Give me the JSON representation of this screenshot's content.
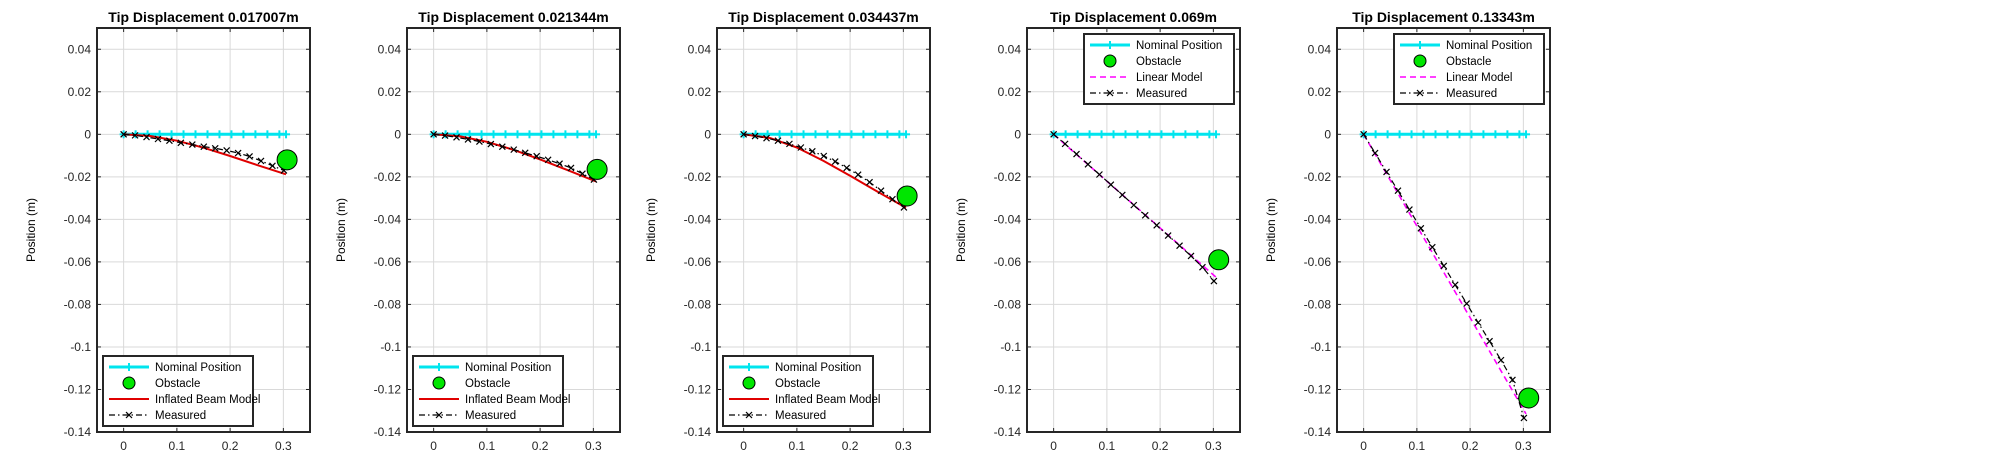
{
  "figure": {
    "x_ticks": [
      "0",
      "0.1",
      "0.2",
      "0.3"
    ],
    "y_ticks": [
      "0.04",
      "0.02",
      "0",
      "-0.02",
      "-0.04",
      "-0.06",
      "-0.08",
      "-0.1",
      "-0.12",
      "-0.14"
    ]
  },
  "colors": {
    "nominal": "#00e5ee",
    "obstacle": "#00e600",
    "beam_model": "#e00000",
    "linear_model": "#ff00ff",
    "measured": "#000000",
    "grid": "#d9d9d9"
  },
  "chart_data": [
    {
      "type": "line",
      "title": "Tip Displacement 0.017007m",
      "xlabel": "",
      "ylabel": "Position (m)",
      "xlim": [
        -0.05,
        0.35
      ],
      "ylim": [
        -0.14,
        0.05
      ],
      "grid": true,
      "legend_position": "bottom-left",
      "legend": [
        "Nominal Position",
        "Obstacle",
        "Inflated Beam Model",
        "Measured"
      ],
      "obstacle": {
        "x": 0.307,
        "y": -0.012
      },
      "series": [
        {
          "name": "Nominal Position",
          "style": "solid-plus",
          "x": [
            0,
            0.0225,
            0.045,
            0.0675,
            0.09,
            0.1125,
            0.135,
            0.1575,
            0.18,
            0.2025,
            0.225,
            0.2475,
            0.27,
            0.2925,
            0.305
          ],
          "y": [
            0,
            0,
            0,
            0,
            0,
            0,
            0,
            0,
            0,
            0,
            0,
            0,
            0,
            0,
            0
          ]
        },
        {
          "name": "Inflated Beam Model",
          "style": "solid",
          "x": [
            0,
            0.05,
            0.1,
            0.15,
            0.2,
            0.25,
            0.305
          ],
          "y": [
            0,
            -0.0008,
            -0.003,
            -0.0063,
            -0.0102,
            -0.0144,
            -0.0188
          ]
        },
        {
          "name": "Measured",
          "style": "dashdot-x",
          "x": [
            0,
            0.0215,
            0.043,
            0.0645,
            0.086,
            0.1075,
            0.129,
            0.1505,
            0.172,
            0.1935,
            0.215,
            0.2365,
            0.258,
            0.2795,
            0.301
          ],
          "y": [
            0,
            -0.0005,
            -0.0013,
            -0.0022,
            -0.003,
            -0.004,
            -0.0048,
            -0.0058,
            -0.0066,
            -0.0076,
            -0.0088,
            -0.0104,
            -0.0125,
            -0.0148,
            -0.017
          ]
        }
      ]
    },
    {
      "type": "line",
      "title": "Tip Displacement 0.021344m",
      "xlabel": "",
      "ylabel": "Position (m)",
      "xlim": [
        -0.05,
        0.35
      ],
      "ylim": [
        -0.14,
        0.05
      ],
      "grid": true,
      "legend_position": "bottom-left",
      "legend": [
        "Nominal Position",
        "Obstacle",
        "Inflated Beam Model",
        "Measured"
      ],
      "obstacle": {
        "x": 0.307,
        "y": -0.0165
      },
      "series": [
        {
          "name": "Nominal Position",
          "style": "solid-plus",
          "x": [
            0,
            0.0225,
            0.045,
            0.0675,
            0.09,
            0.1125,
            0.135,
            0.1575,
            0.18,
            0.2025,
            0.225,
            0.2475,
            0.27,
            0.2925,
            0.305
          ],
          "y": [
            0,
            0,
            0,
            0,
            0,
            0,
            0,
            0,
            0,
            0,
            0,
            0,
            0,
            0,
            0
          ]
        },
        {
          "name": "Inflated Beam Model",
          "style": "solid",
          "x": [
            0,
            0.05,
            0.1,
            0.15,
            0.2,
            0.25,
            0.305
          ],
          "y": [
            0,
            -0.001,
            -0.0035,
            -0.0073,
            -0.0118,
            -0.0167,
            -0.0222
          ]
        },
        {
          "name": "Measured",
          "style": "dashdot-x",
          "x": [
            0,
            0.0215,
            0.043,
            0.0645,
            0.086,
            0.1075,
            0.129,
            0.1505,
            0.172,
            0.1935,
            0.215,
            0.2365,
            0.258,
            0.2795,
            0.301
          ],
          "y": [
            0,
            -0.0006,
            -0.0014,
            -0.0024,
            -0.0034,
            -0.0046,
            -0.0058,
            -0.0072,
            -0.0087,
            -0.0103,
            -0.012,
            -0.0138,
            -0.0158,
            -0.0185,
            -0.0213
          ]
        }
      ]
    },
    {
      "type": "line",
      "title": "Tip Displacement 0.034437m",
      "xlabel": "",
      "ylabel": "Position (m)",
      "xlim": [
        -0.05,
        0.35
      ],
      "ylim": [
        -0.14,
        0.05
      ],
      "grid": true,
      "legend_position": "bottom-left",
      "legend": [
        "Nominal Position",
        "Obstacle",
        "Inflated Beam Model",
        "Measured"
      ],
      "obstacle": {
        "x": 0.307,
        "y": -0.029
      },
      "series": [
        {
          "name": "Nominal Position",
          "style": "solid-plus",
          "x": [
            0,
            0.0225,
            0.045,
            0.0675,
            0.09,
            0.1125,
            0.135,
            0.1575,
            0.18,
            0.2025,
            0.225,
            0.2475,
            0.27,
            0.2925,
            0.305
          ],
          "y": [
            0,
            0,
            0,
            0,
            0,
            0,
            0,
            0,
            0,
            0,
            0,
            0,
            0,
            0,
            0
          ]
        },
        {
          "name": "Inflated Beam Model",
          "style": "solid",
          "x": [
            0,
            0.05,
            0.1,
            0.15,
            0.2,
            0.25,
            0.305
          ],
          "y": [
            0,
            -0.0018,
            -0.0062,
            -0.0125,
            -0.0195,
            -0.0268,
            -0.0345
          ]
        },
        {
          "name": "Measured",
          "style": "dashdot-x",
          "x": [
            0,
            0.0215,
            0.043,
            0.0645,
            0.086,
            0.1075,
            0.129,
            0.1505,
            0.172,
            0.1935,
            0.215,
            0.2365,
            0.258,
            0.2795,
            0.301
          ],
          "y": [
            0,
            -0.0008,
            -0.0018,
            -0.003,
            -0.0045,
            -0.0062,
            -0.008,
            -0.0102,
            -0.0128,
            -0.0158,
            -0.019,
            -0.0225,
            -0.0265,
            -0.0305,
            -0.0344
          ]
        }
      ]
    },
    {
      "type": "line",
      "title": "Tip Displacement 0.069m",
      "xlabel": "",
      "ylabel": "Position (m)",
      "xlim": [
        -0.05,
        0.35
      ],
      "ylim": [
        -0.14,
        0.05
      ],
      "grid": true,
      "legend_position": "top-right",
      "legend": [
        "Nominal Position",
        "Obstacle",
        "Linear Model",
        "Measured"
      ],
      "obstacle": {
        "x": 0.31,
        "y": -0.059
      },
      "series": [
        {
          "name": "Nominal Position",
          "style": "solid-plus",
          "x": [
            0,
            0.0225,
            0.045,
            0.0675,
            0.09,
            0.1125,
            0.135,
            0.1575,
            0.18,
            0.2025,
            0.225,
            0.2475,
            0.27,
            0.2925,
            0.305
          ],
          "y": [
            0,
            0,
            0,
            0,
            0,
            0,
            0,
            0,
            0,
            0,
            0,
            0,
            0,
            0,
            0
          ]
        },
        {
          "name": "Linear Model",
          "style": "dashed",
          "x": [
            0,
            0.305
          ],
          "y": [
            0,
            -0.0672
          ]
        },
        {
          "name": "Measured",
          "style": "dashdot-x",
          "x": [
            0,
            0.0215,
            0.043,
            0.0645,
            0.086,
            0.1075,
            0.129,
            0.1505,
            0.172,
            0.1935,
            0.215,
            0.2365,
            0.258,
            0.2795,
            0.301
          ],
          "y": [
            0,
            -0.0045,
            -0.0093,
            -0.0141,
            -0.0189,
            -0.0237,
            -0.0285,
            -0.0333,
            -0.0381,
            -0.0428,
            -0.0476,
            -0.0524,
            -0.0572,
            -0.0625,
            -0.069
          ]
        }
      ]
    },
    {
      "type": "line",
      "title": "Tip Displacement 0.13343m",
      "xlabel": "",
      "ylabel": "Position (m)",
      "xlim": [
        -0.05,
        0.35
      ],
      "ylim": [
        -0.14,
        0.05
      ],
      "grid": true,
      "legend_position": "top-right",
      "legend": [
        "Nominal Position",
        "Obstacle",
        "Linear Model",
        "Measured"
      ],
      "obstacle": {
        "x": 0.31,
        "y": -0.124
      },
      "series": [
        {
          "name": "Nominal Position",
          "style": "solid-plus",
          "x": [
            0,
            0.0225,
            0.045,
            0.0675,
            0.09,
            0.1125,
            0.135,
            0.1575,
            0.18,
            0.2025,
            0.225,
            0.2475,
            0.27,
            0.2925,
            0.305
          ],
          "y": [
            0,
            0,
            0,
            0,
            0,
            0,
            0,
            0,
            0,
            0,
            0,
            0,
            0,
            0,
            0
          ]
        },
        {
          "name": "Linear Model",
          "style": "dashed",
          "x": [
            0,
            0.305
          ],
          "y": [
            0,
            -0.1315
          ]
        },
        {
          "name": "Measured",
          "style": "dashdot-x",
          "x": [
            0,
            0.0215,
            0.043,
            0.0645,
            0.086,
            0.1075,
            0.129,
            0.1505,
            0.172,
            0.1935,
            0.215,
            0.2365,
            0.258,
            0.2795,
            0.301
          ],
          "y": [
            0,
            -0.0088,
            -0.0177,
            -0.0265,
            -0.0354,
            -0.0442,
            -0.0531,
            -0.0619,
            -0.0708,
            -0.0796,
            -0.0885,
            -0.0973,
            -0.1062,
            -0.1155,
            -0.1334
          ]
        }
      ]
    }
  ]
}
